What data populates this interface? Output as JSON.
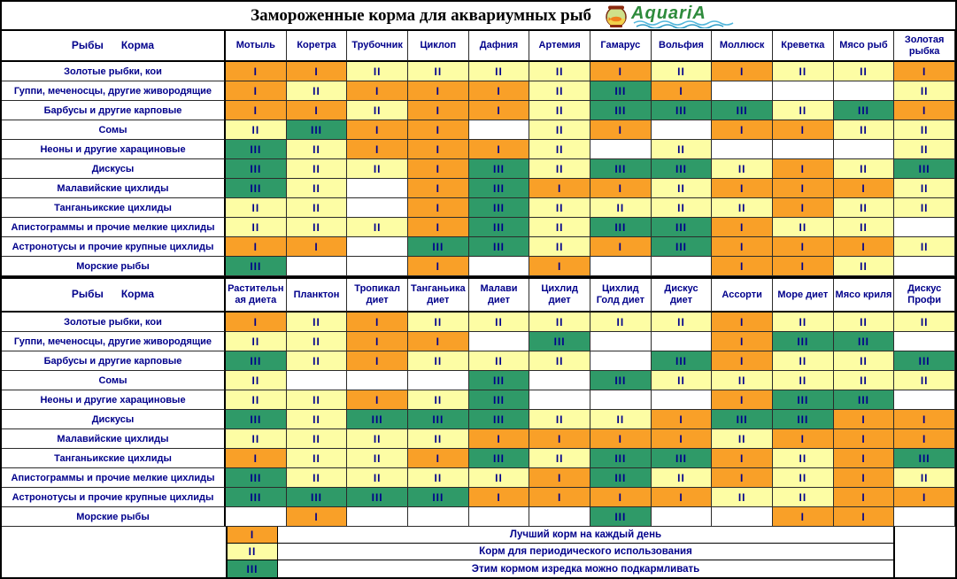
{
  "logo": {
    "brand": "AquariA"
  },
  "chart_data": {
    "type": "table",
    "title": "Замороженные корма для аквариумных рыб",
    "value_colors": {
      "I": "#F9A028",
      "II": "#FDFDA4",
      "III": "#2F9A68",
      "": "#FFFFFF"
    },
    "text_color": "#00008B",
    "tables": [
      {
        "corner": "Рыбы      Корма",
        "columns": [
          "Мотыль",
          "Коретра",
          "Трубочник",
          "Циклоп",
          "Дафния",
          "Артемия",
          "Гамарус",
          "Вольфия",
          "Моллюск",
          "Креветка",
          "Мясо рыб",
          "Золотая рыбка"
        ],
        "rows": [
          {
            "label": "Золотые рыбки, кои",
            "values": [
              "I",
              "I",
              "II",
              "II",
              "II",
              "II",
              "I",
              "II",
              "I",
              "II",
              "II",
              "I"
            ]
          },
          {
            "label": "Гуппи, меченосцы, другие живородящие",
            "values": [
              "I",
              "II",
              "I",
              "I",
              "I",
              "II",
              "III",
              "I",
              "",
              "",
              "",
              "II"
            ]
          },
          {
            "label": "Барбусы  и другие карповые",
            "values": [
              "I",
              "I",
              "II",
              "I",
              "I",
              "II",
              "III",
              "III",
              "III",
              "II",
              "III",
              "I"
            ]
          },
          {
            "label": "Сомы",
            "values": [
              "II",
              "III",
              "I",
              "I",
              "",
              "II",
              "I",
              "",
              "I",
              "I",
              "II",
              "II"
            ]
          },
          {
            "label": "Неоны и другие харациновые",
            "values": [
              "III",
              "II",
              "I",
              "I",
              "I",
              "II",
              "",
              "II",
              "",
              "",
              "",
              "II"
            ]
          },
          {
            "label": "Дискусы",
            "values": [
              "III",
              "II",
              "II",
              "I",
              "III",
              "II",
              "III",
              "III",
              "II",
              "I",
              "II",
              "III"
            ]
          },
          {
            "label": "Малавийские цихлиды",
            "values": [
              "III",
              "II",
              "",
              "I",
              "III",
              "I",
              "I",
              "II",
              "I",
              "I",
              "I",
              "II"
            ]
          },
          {
            "label": "Танганьикские цихлиды",
            "values": [
              "II",
              "II",
              "",
              "I",
              "III",
              "II",
              "II",
              "II",
              "II",
              "I",
              "II",
              "II"
            ]
          },
          {
            "label": "Апистограммы и прочие мелкие цихлиды",
            "values": [
              "II",
              "II",
              "II",
              "I",
              "III",
              "II",
              "III",
              "III",
              "I",
              "II",
              "II",
              ""
            ]
          },
          {
            "label": "Астронотусы и прочие крупные цихлиды",
            "values": [
              "I",
              "I",
              "",
              "III",
              "III",
              "II",
              "I",
              "III",
              "I",
              "I",
              "I",
              "II"
            ]
          },
          {
            "label": "Морские рыбы",
            "values": [
              "III",
              "",
              "",
              "I",
              "",
              "I",
              "",
              "",
              "I",
              "I",
              "II",
              ""
            ]
          }
        ]
      },
      {
        "corner": "Рыбы      Корма",
        "columns": [
          "Растительная диета",
          "Планктон",
          "Тропикал диет",
          "Танганьика диет",
          "Малави диет",
          "Цихлид диет",
          "Цихлид Голд диет",
          "Дискус диет",
          "Ассорти",
          "Море диет",
          "Мясо криля",
          "Дискус Профи"
        ],
        "rows": [
          {
            "label": "Золотые рыбки, кои",
            "values": [
              "I",
              "II",
              "I",
              "II",
              "II",
              "II",
              "II",
              "II",
              "I",
              "II",
              "II",
              "II"
            ]
          },
          {
            "label": "Гуппи, меченосцы, другие живородящие",
            "values": [
              "II",
              "II",
              "I",
              "I",
              "",
              "III",
              "",
              "",
              "I",
              "III",
              "III",
              ""
            ]
          },
          {
            "label": "Барбусы  и другие карповые",
            "values": [
              "III",
              "II",
              "I",
              "II",
              "II",
              "II",
              "",
              "III",
              "I",
              "II",
              "II",
              "III"
            ]
          },
          {
            "label": "Сомы",
            "values": [
              "II",
              "",
              "",
              "",
              "III",
              "",
              "III",
              "II",
              "II",
              "II",
              "II",
              "II"
            ]
          },
          {
            "label": "Неоны и другие харациновые",
            "values": [
              "II",
              "II",
              "I",
              "II",
              "III",
              "",
              "",
              "",
              "I",
              "III",
              "III",
              ""
            ]
          },
          {
            "label": "Дискусы",
            "values": [
              "III",
              "II",
              "III",
              "III",
              "III",
              "II",
              "II",
              "I",
              "III",
              "III",
              "I",
              "I"
            ]
          },
          {
            "label": "Малавийские цихлиды",
            "values": [
              "II",
              "II",
              "II",
              "II",
              "I",
              "I",
              "I",
              "I",
              "II",
              "I",
              "I",
              "I"
            ]
          },
          {
            "label": "Танганьикские цихлиды",
            "values": [
              "I",
              "II",
              "II",
              "I",
              "III",
              "II",
              "III",
              "III",
              "I",
              "II",
              "I",
              "III"
            ]
          },
          {
            "label": "Апистограммы и прочие мелкие цихлиды",
            "values": [
              "III",
              "II",
              "II",
              "II",
              "II",
              "I",
              "III",
              "II",
              "I",
              "II",
              "I",
              "II"
            ]
          },
          {
            "label": "Астронотусы и прочие крупные цихлиды",
            "values": [
              "III",
              "III",
              "III",
              "III",
              "I",
              "I",
              "I",
              "I",
              "II",
              "II",
              "I",
              "I"
            ]
          },
          {
            "label": "Морские рыбы",
            "values": [
              "",
              "I",
              "",
              "",
              "",
              "",
              "III",
              "",
              "",
              "I",
              "I",
              ""
            ]
          }
        ]
      }
    ],
    "legend": [
      {
        "symbol": "I",
        "text": "Лучший корм на каждый день"
      },
      {
        "symbol": "II",
        "text": "Корм для периодического использования"
      },
      {
        "symbol": "III",
        "text": "Этим кормом изредка можно подкармливать"
      }
    ]
  }
}
